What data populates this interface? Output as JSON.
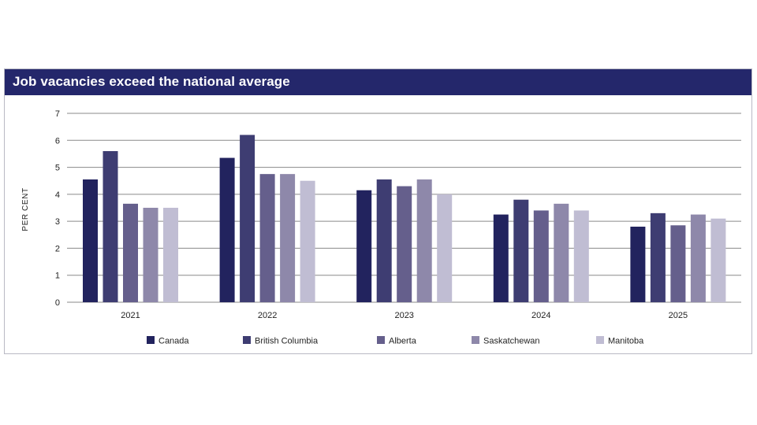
{
  "chart_data": {
    "type": "bar",
    "title": "Job vacancies exceed the national average",
    "ylabel": "PER CENT",
    "xlabel": "",
    "ylim": [
      0,
      7
    ],
    "yticks": [
      0,
      1,
      2,
      3,
      4,
      5,
      6,
      7
    ],
    "grid": true,
    "legend_position": "bottom",
    "categories": [
      "2021",
      "2022",
      "2023",
      "2024",
      "2025"
    ],
    "series": [
      {
        "name": "Canada",
        "color": "#22235e",
        "values": [
          4.55,
          5.35,
          4.15,
          3.25,
          2.8
        ]
      },
      {
        "name": "British Columbia",
        "color": "#3e3d72",
        "values": [
          5.6,
          6.2,
          4.55,
          3.8,
          3.3
        ]
      },
      {
        "name": "Alberta",
        "color": "#655f8c",
        "values": [
          3.65,
          4.75,
          4.3,
          3.4,
          2.85
        ]
      },
      {
        "name": "Saskatchewan",
        "color": "#8e88aa",
        "values": [
          3.5,
          4.75,
          4.55,
          3.65,
          3.25
        ]
      },
      {
        "name": "Manitoba",
        "color": "#c0bdd3",
        "values": [
          3.5,
          4.5,
          4.0,
          3.4,
          3.1
        ]
      }
    ]
  }
}
